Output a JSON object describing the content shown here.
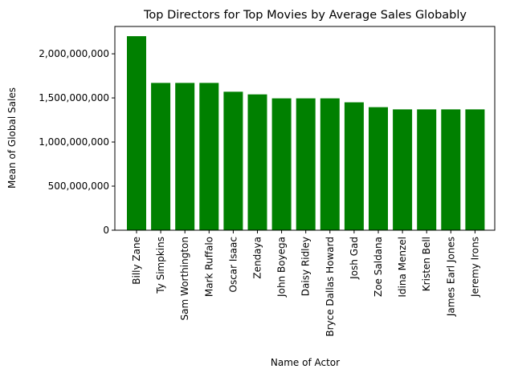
{
  "chart_data": {
    "type": "bar",
    "title": "Top Directors for Top Movies by Average Sales Globably",
    "xlabel": "Name of Actor",
    "ylabel": "Mean of Global Sales",
    "categories": [
      "Billy Zane",
      "Ty Simpkins",
      "Sam Worthington",
      "Mark Ruffalo",
      "Oscar Isaac",
      "Zendaya",
      "John Boyega",
      "Daisy Ridley",
      "Bryce Dallas Howard",
      "Josh Gad",
      "Zoe Saldana",
      "Idina Menzel",
      "Kristen Bell",
      "James Earl Jones",
      "Jeremy Irons"
    ],
    "values": [
      2200000000,
      1670000000,
      1670000000,
      1670000000,
      1570000000,
      1540000000,
      1495000000,
      1495000000,
      1495000000,
      1450000000,
      1395000000,
      1370000000,
      1370000000,
      1370000000,
      1370000000
    ],
    "yticks": [
      0,
      500000000,
      1000000000,
      1500000000,
      2000000000
    ],
    "ytick_labels": [
      "0",
      "500,000,000",
      "1,000,000,000",
      "1,500,000,000",
      "2,000,000,000"
    ],
    "ylim": [
      0,
      2310000000
    ],
    "bar_color": "#008000",
    "grid": false,
    "legend": "none"
  }
}
